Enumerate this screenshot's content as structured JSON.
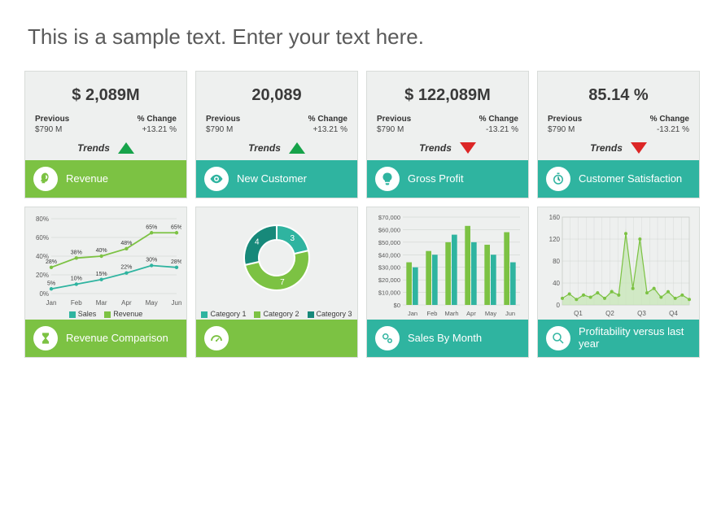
{
  "title": "This is a sample text. Enter your text here.",
  "colors": {
    "green": "#7cc243",
    "teal": "#2fb4a0",
    "teal_dark": "#17897a",
    "card_bg": "#eef0ef",
    "card_border": "#d8dcd9",
    "up": "#16a34a",
    "down": "#dc2626",
    "grid": "#c9cec9",
    "axis_text": "#5a5a5a"
  },
  "kpi_labels": {
    "previous": "Previous",
    "change": "% Change",
    "trends": "Trends"
  },
  "kpis": [
    {
      "value": "$ 2,089M",
      "previous": "$790 M",
      "change": "+13.21 %",
      "trend": "up",
      "label": "Revenue",
      "foot_color": "#7cc243",
      "icon": "head"
    },
    {
      "value": "20,089",
      "previous": "$790 M",
      "change": "+13.21 %",
      "trend": "up",
      "label": "New Customer",
      "foot_color": "#2fb4a0",
      "icon": "eye"
    },
    {
      "value": "$ 122,089M",
      "previous": "$790 M",
      "change": "-13.21 %",
      "trend": "down",
      "label": "Gross Profit",
      "foot_color": "#2fb4a0",
      "icon": "bulb"
    },
    {
      "value": "85.14 %",
      "previous": "$790 M",
      "change": "-13.21 %",
      "trend": "down",
      "label": "Customer Satisfaction",
      "foot_color": "#2fb4a0",
      "icon": "stop"
    }
  ],
  "charts": [
    {
      "type": "line",
      "label": "Revenue Comparison",
      "foot_color": "#7cc243",
      "icon": "hourglass",
      "x": [
        "Jan",
        "Feb",
        "Mar",
        "Apr",
        "May",
        "Jun"
      ],
      "ylim": [
        0,
        80
      ],
      "ytick_step": 20,
      "y_suffix": "%",
      "series": [
        {
          "name": "Sales",
          "color": "#2fb4a0",
          "values": [
            5,
            10,
            15,
            22,
            30,
            28
          ],
          "point_labels": [
            "5%",
            "10%",
            "15%",
            "22%",
            "30%",
            "28%"
          ]
        },
        {
          "name": "Revenue",
          "color": "#7cc243",
          "values": [
            28,
            38,
            40,
            48,
            65,
            65
          ],
          "point_labels": [
            "28%",
            "38%",
            "40%",
            "48%",
            "65%",
            "65%"
          ]
        }
      ],
      "legend": [
        "Sales",
        "Revenue"
      ]
    },
    {
      "type": "donut",
      "label": "",
      "foot_color": "#7cc243",
      "icon": "gauge",
      "slices": [
        {
          "name": "Category 1",
          "value": 3,
          "color": "#2fb4a0"
        },
        {
          "name": "Category 2",
          "value": 7,
          "color": "#7cc243"
        },
        {
          "name": "Category 3",
          "value": 4,
          "color": "#17897a"
        }
      ],
      "legend": [
        "Category 1",
        "Category 2",
        "Category 3"
      ]
    },
    {
      "type": "bar",
      "label": "Sales By Month",
      "foot_color": "#2fb4a0",
      "icon": "gears",
      "x": [
        "Jan",
        "Feb",
        "Marh",
        "Apr",
        "May",
        "Jun"
      ],
      "ylim": [
        0,
        70000
      ],
      "ytick_step": 10000,
      "y_prefix": "$",
      "y_format": "thousands",
      "series": [
        {
          "color": "#7cc243",
          "values": [
            34000,
            43000,
            50000,
            63000,
            48000,
            58000
          ]
        },
        {
          "color": "#2fb4a0",
          "values": [
            30000,
            40000,
            56000,
            50000,
            40000,
            34000
          ]
        }
      ]
    },
    {
      "type": "spike",
      "label": "Profitability versus last year",
      "foot_color": "#2fb4a0",
      "icon": "search",
      "x": [
        "Q1",
        "Q2",
        "Q3",
        "Q4"
      ],
      "ylim": [
        0,
        160
      ],
      "ytick_step": 40,
      "fill_color": "#c5e6b3",
      "line_color": "#7cc243",
      "area_values": [
        10,
        18,
        8,
        22,
        12,
        26,
        10,
        30,
        15,
        140,
        28,
        130,
        20,
        35,
        12,
        28,
        10,
        20,
        8
      ],
      "dot_values": [
        12,
        20,
        10,
        18,
        14,
        22,
        12,
        24,
        18,
        130,
        30,
        120,
        22,
        30,
        14,
        24,
        12,
        18,
        10
      ]
    }
  ]
}
